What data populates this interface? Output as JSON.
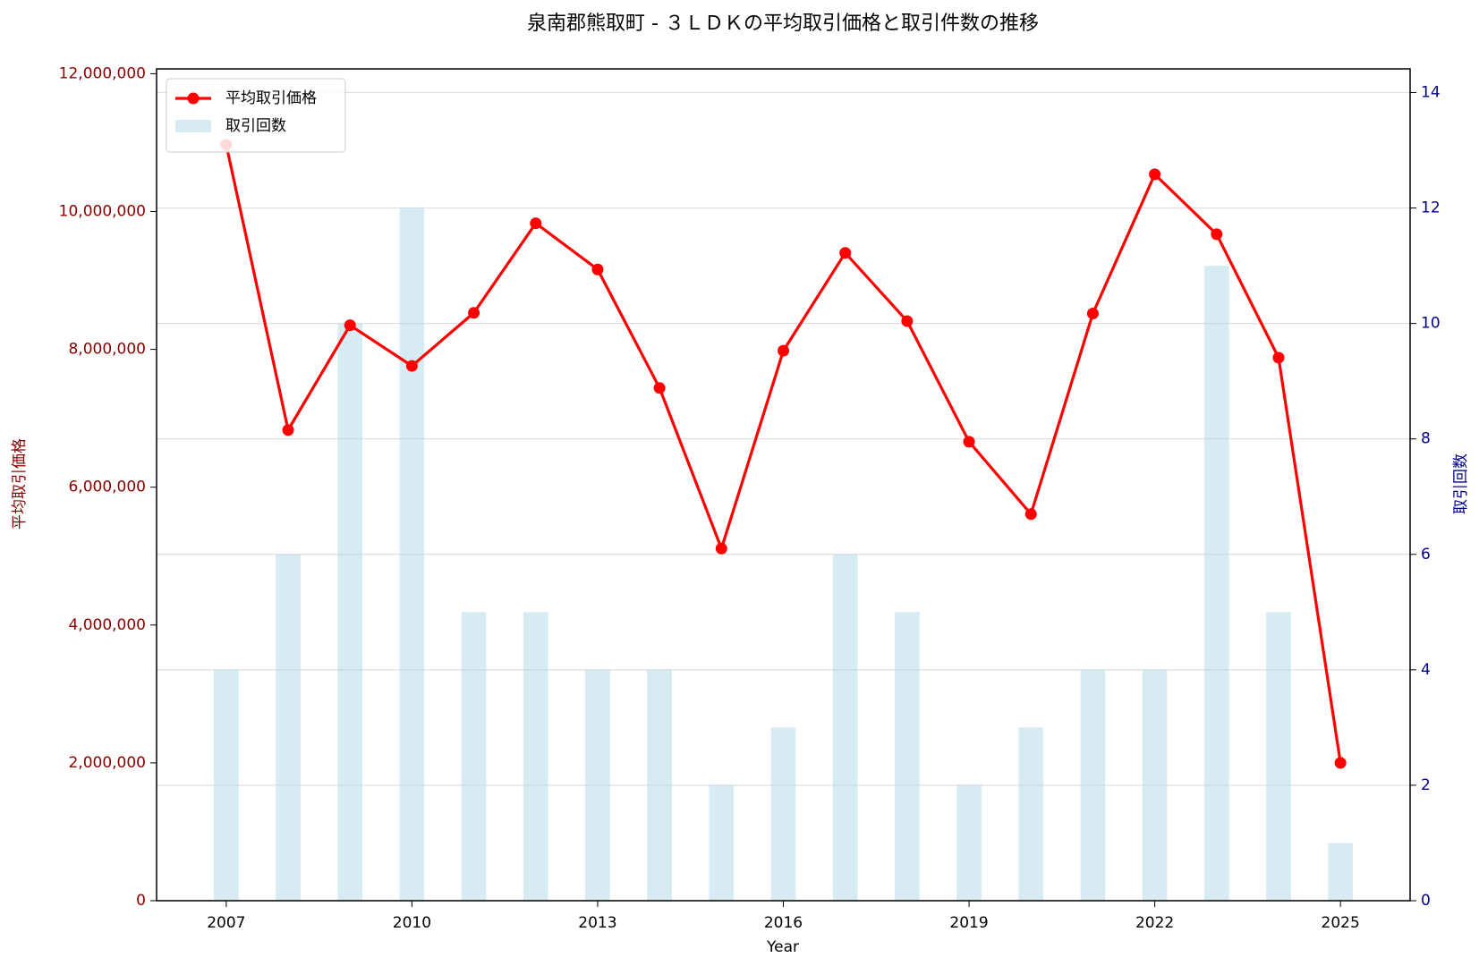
{
  "chart_data": {
    "type": "combo",
    "title": "泉南郡熊取町 - ３ＬＤＫの平均取引価格と取引件数の推移",
    "xlabel": "Year",
    "ylabel": "平均取引価格",
    "y2label": "取引回数",
    "x": [
      2007,
      2008,
      2009,
      2010,
      2011,
      2012,
      2013,
      2014,
      2015,
      2016,
      2017,
      2018,
      2019,
      2020,
      2021,
      2022,
      2023,
      2024,
      2025
    ],
    "series": [
      {
        "name": "平均取引価格",
        "type": "line",
        "color": "#ff0000",
        "axis": "y",
        "values": [
          10970000,
          6830000,
          8350000,
          7760000,
          8530000,
          9830000,
          9160000,
          7440000,
          5110000,
          7980000,
          9400000,
          8410000,
          6660000,
          5610000,
          8520000,
          10540000,
          9670000,
          7880000,
          2000000
        ]
      },
      {
        "name": "取引回数",
        "type": "bar",
        "color": "#add8e6",
        "axis": "y2",
        "values": [
          4,
          6,
          10,
          12,
          5,
          5,
          4,
          4,
          2,
          3,
          6,
          5,
          2,
          3,
          4,
          4,
          11,
          5,
          1
        ]
      }
    ],
    "xlim": [
      2005.875,
      2026.125
    ],
    "xticks": [
      2007,
      2010,
      2013,
      2016,
      2019,
      2022,
      2025
    ],
    "ylim": [
      0,
      12070000
    ],
    "yticks": [
      0,
      {
        "value": 2000000,
        "label": "2,000,000"
      },
      {
        "value": 4000000,
        "label": "4,000,000"
      },
      {
        "value": 6000000,
        "label": "6,000,000"
      },
      {
        "value": 8000000,
        "label": "8,000,000"
      },
      {
        "value": 10000000,
        "label": "10,000,000"
      },
      {
        "value": 12000000,
        "label": "12,000,000"
      }
    ],
    "y2lim": [
      0,
      14.41
    ],
    "y2ticks": [
      0,
      2,
      4,
      6,
      8,
      10,
      12,
      14
    ],
    "grid": true,
    "legend": "upper left",
    "ylabel_color": "#8b0000",
    "y2label_color": "#00008b"
  }
}
